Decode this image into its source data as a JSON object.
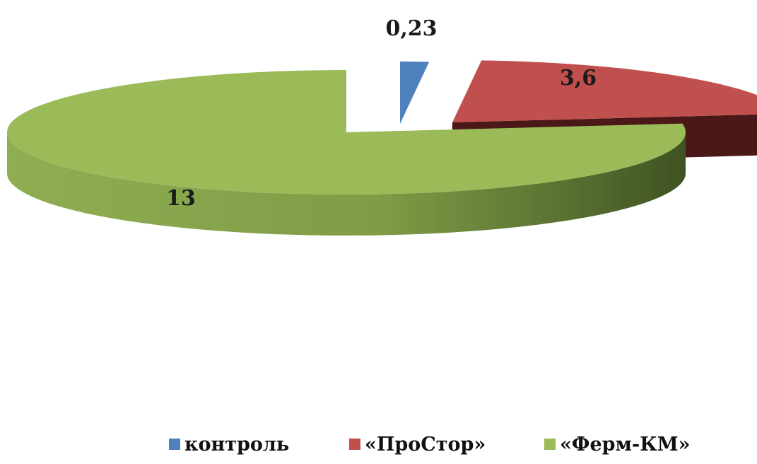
{
  "chart_data": {
    "type": "pie",
    "style": "3d-exploded",
    "title": "",
    "categories": [
      "контроль",
      "«ПроСтор»",
      "«Ферм-КМ»"
    ],
    "values": [
      0.23,
      3.6,
      13
    ],
    "value_labels": [
      "0,23",
      "3,6",
      "13"
    ],
    "colors": [
      "#4F81BD",
      "#C0504D",
      "#9BBB59"
    ],
    "legend_position": "bottom",
    "grid": false
  },
  "legend": {
    "items": [
      {
        "label": "контроль",
        "color": "#4F81BD"
      },
      {
        "label": "«ПроСтор»",
        "color": "#C0504D"
      },
      {
        "label": "«Ферм-КМ»",
        "color": "#9BBB59"
      }
    ]
  }
}
